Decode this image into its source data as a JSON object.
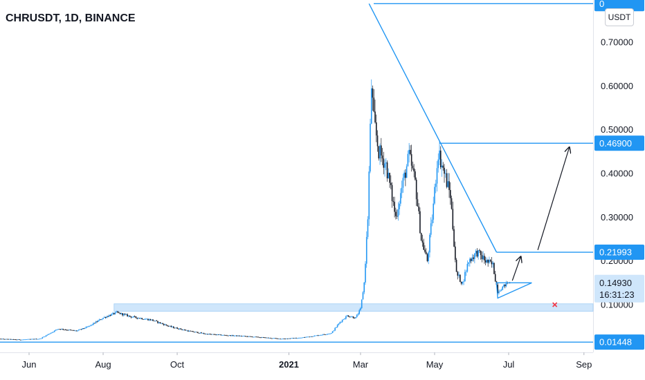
{
  "header": {
    "title": "CHRUSDT, 1D, BINANCE",
    "currency": "USDT"
  },
  "chart_data": {
    "type": "candlestick",
    "title": "CHRUSDT, 1D, BINANCE",
    "xlabel": "",
    "ylabel": "",
    "ylim": [
      0.0,
      0.8
    ],
    "x_ticks": [
      {
        "label": "Jun",
        "date": "2020-06-01"
      },
      {
        "label": "Aug",
        "date": "2020-08-01"
      },
      {
        "label": "Oct",
        "date": "2020-10-01"
      },
      {
        "label": "2021",
        "date": "2021-01-01",
        "bold": true
      },
      {
        "label": "Mar",
        "date": "2021-03-01"
      },
      {
        "label": "May",
        "date": "2021-05-01"
      },
      {
        "label": "Jul",
        "date": "2021-07-01"
      },
      {
        "label": "Sep",
        "date": "2021-09-01"
      }
    ],
    "y_ticks": [
      0.1,
      0.2,
      0.3,
      0.4,
      0.5,
      0.6,
      0.7
    ],
    "y_tick_labels": [
      "0.10000",
      "0.20000",
      "0.30000",
      "0.40000",
      "0.50000",
      "0.60000",
      "0.70000"
    ],
    "price_key_points": [
      [
        "2020-05-04",
        0.022
      ],
      [
        "2020-05-25",
        0.02
      ],
      [
        "2020-06-10",
        0.022
      ],
      [
        "2020-06-25",
        0.045
      ],
      [
        "2020-07-10",
        0.04
      ],
      [
        "2020-07-20",
        0.05
      ],
      [
        "2020-08-01",
        0.07
      ],
      [
        "2020-08-12",
        0.082
      ],
      [
        "2020-08-25",
        0.072
      ],
      [
        "2020-09-10",
        0.065
      ],
      [
        "2020-09-25",
        0.05
      ],
      [
        "2020-10-10",
        0.04
      ],
      [
        "2020-10-25",
        0.033
      ],
      [
        "2020-11-10",
        0.03
      ],
      [
        "2020-11-25",
        0.028
      ],
      [
        "2020-12-10",
        0.025
      ],
      [
        "2020-12-25",
        0.022
      ],
      [
        "2021-01-10",
        0.024
      ],
      [
        "2021-01-25",
        0.03
      ],
      [
        "2021-02-05",
        0.035
      ],
      [
        "2021-02-12",
        0.06
      ],
      [
        "2021-02-18",
        0.075
      ],
      [
        "2021-02-25",
        0.07
      ],
      [
        "2021-03-01",
        0.09
      ],
      [
        "2021-03-04",
        0.15
      ],
      [
        "2021-03-07",
        0.3
      ],
      [
        "2021-03-10",
        0.6
      ],
      [
        "2021-03-12",
        0.52
      ],
      [
        "2021-03-16",
        0.45
      ],
      [
        "2021-03-22",
        0.42
      ],
      [
        "2021-03-30",
        0.3
      ],
      [
        "2021-04-05",
        0.38
      ],
      [
        "2021-04-10",
        0.44
      ],
      [
        "2021-04-15",
        0.38
      ],
      [
        "2021-04-20",
        0.25
      ],
      [
        "2021-04-25",
        0.2
      ],
      [
        "2021-04-29",
        0.3
      ],
      [
        "2021-05-04",
        0.45
      ],
      [
        "2021-05-09",
        0.4
      ],
      [
        "2021-05-14",
        0.35
      ],
      [
        "2021-05-19",
        0.17
      ],
      [
        "2021-05-24",
        0.15
      ],
      [
        "2021-05-29",
        0.2
      ],
      [
        "2021-06-05",
        0.22
      ],
      [
        "2021-06-12",
        0.2
      ],
      [
        "2021-06-18",
        0.19
      ],
      [
        "2021-06-22",
        0.13
      ],
      [
        "2021-06-26",
        0.14
      ],
      [
        "2021-06-30",
        0.15
      ],
      [
        "2021-07-02",
        0.1493
      ]
    ],
    "support_zone": {
      "low": 0.085,
      "high": 0.102,
      "from": "2020-08-10",
      "label": ""
    },
    "annotations": [
      {
        "type": "horizontal_line",
        "price": 0.788,
        "label": "0"
      },
      {
        "type": "horizontal_line",
        "price": 0.469,
        "from": "2021-05-05",
        "label": "0.46900"
      },
      {
        "type": "horizontal_line",
        "price": 0.21993,
        "from": "2021-06-21",
        "label": "0.21993"
      },
      {
        "type": "horizontal_line",
        "price": 0.01448,
        "label": "0.01448"
      },
      {
        "type": "trendline",
        "from": [
          "2021-03-08",
          0.788
        ],
        "to": [
          "2021-06-21",
          0.22
        ]
      },
      {
        "type": "triangle",
        "points": [
          [
            "2021-06-21",
            0.15
          ],
          [
            "2021-07-20",
            0.15
          ],
          [
            "2021-06-22",
            0.115
          ]
        ]
      },
      {
        "type": "arrow",
        "from": [
          "2021-07-04",
          0.155
        ],
        "to": [
          "2021-07-11",
          0.21
        ]
      },
      {
        "type": "arrow",
        "from": [
          "2021-07-25",
          0.225
        ],
        "to": [
          "2021-08-20",
          0.46
        ]
      },
      {
        "type": "marker_x",
        "at": [
          "2021-08-08",
          0.1
        ]
      }
    ],
    "last_price": {
      "value": "0.14930",
      "time": "16:31:23"
    }
  },
  "colors": {
    "up": "#2196f3",
    "down": "#131722",
    "line": "#2196f3",
    "zone": "#cfe6fb",
    "label_bg": "#2196f3",
    "label_text": "#ffffff",
    "x_marker": "#f23645",
    "axis_text": "#131722"
  }
}
